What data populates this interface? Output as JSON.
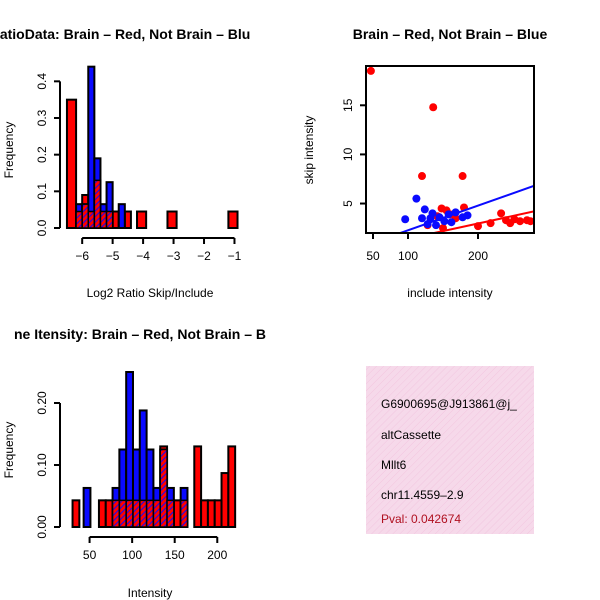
{
  "chart_data": [
    {
      "type": "histogram",
      "title": "RatioData: Brain – Red, Not Brain – Blu",
      "xlabel": "Log2 Ratio Skip/Include",
      "ylabel": "Frequency",
      "xlim": [
        -6.4,
        -0.95
      ],
      "ylim": [
        0,
        0.45
      ],
      "xticks": [
        -6,
        -5,
        -4,
        -3,
        -2,
        -1
      ],
      "xtick_labels": [
        "−6",
        "−5",
        "−4",
        "−3",
        "−2",
        "−1"
      ],
      "yticks": [
        0.0,
        0.1,
        0.2,
        0.3,
        0.4
      ],
      "ytick_labels": [
        "0.0",
        "0.1",
        "0.2",
        "0.3",
        "0.4"
      ],
      "series": [
        {
          "name": "Brain",
          "color": "#ff0000",
          "bins": [
            {
              "start": -6.5,
              "end": -6.2,
              "value": 0.35
            },
            {
              "start": -6.2,
              "end": -6.0,
              "value": 0.045
            },
            {
              "start": -6.0,
              "end": -5.8,
              "value": 0.09
            },
            {
              "start": -5.8,
              "end": -5.6,
              "value": 0.045
            },
            {
              "start": -5.6,
              "end": -5.4,
              "value": 0.13
            },
            {
              "start": -5.4,
              "end": -5.2,
              "value": 0.045
            },
            {
              "start": -5.2,
              "end": -5.0,
              "value": 0.045
            },
            {
              "start": -5.0,
              "end": -4.8,
              "value": 0.045
            },
            {
              "start": -4.6,
              "end": -4.4,
              "value": 0.045
            },
            {
              "start": -4.2,
              "end": -3.9,
              "value": 0.045
            },
            {
              "start": -3.2,
              "end": -2.9,
              "value": 0.045
            },
            {
              "start": -1.2,
              "end": -0.9,
              "value": 0.045
            }
          ]
        },
        {
          "name": "Not Brain",
          "color": "#0a0aff",
          "bins": [
            {
              "start": -6.2,
              "end": -6.0,
              "value": 0.065
            },
            {
              "start": -6.0,
              "end": -5.8,
              "value": 0.065
            },
            {
              "start": -5.8,
              "end": -5.6,
              "value": 0.44
            },
            {
              "start": -5.6,
              "end": -5.4,
              "value": 0.19
            },
            {
              "start": -5.4,
              "end": -5.2,
              "value": 0.065
            },
            {
              "start": -5.2,
              "end": -5.0,
              "value": 0.125
            },
            {
              "start": -4.8,
              "end": -4.6,
              "value": 0.065
            }
          ]
        }
      ]
    },
    {
      "type": "scatter",
      "title": "Brain – Red, Not Brain – Blue",
      "xlabel": "include intensity",
      "ylabel": "skip intensity",
      "xlim": [
        40,
        280
      ],
      "ylim": [
        2,
        19
      ],
      "xticks": [
        50,
        100,
        200
      ],
      "yticks": [
        5,
        10,
        15
      ],
      "series": [
        {
          "name": "Brain",
          "color": "#ff0000",
          "points": [
            [
              47,
              18.5
            ],
            [
              120,
              7.8
            ],
            [
              136,
              14.8
            ],
            [
              178,
              7.8
            ],
            [
              128,
              2.8
            ],
            [
              142,
              3.7
            ],
            [
              148,
              4.5
            ],
            [
              155,
              4.3
            ],
            [
              160,
              3.9
            ],
            [
              168,
              3.5
            ],
            [
              180,
              4.6
            ],
            [
              200,
              2.7
            ],
            [
              218,
              3.0
            ],
            [
              233,
              4.0
            ],
            [
              240,
              3.3
            ],
            [
              246,
              3.0
            ],
            [
              252,
              3.4
            ],
            [
              260,
              3.2
            ],
            [
              270,
              3.3
            ],
            [
              275,
              3.2
            ],
            [
              150,
              2.5
            ]
          ],
          "fit": [
            [
              40,
              0.5
            ],
            [
              280,
              4.2
            ]
          ]
        },
        {
          "name": "Not Brain",
          "color": "#0a0aff",
          "points": [
            [
              96,
              3.4
            ],
            [
              112,
              5.5
            ],
            [
              120,
              3.5
            ],
            [
              124,
              4.4
            ],
            [
              128,
              2.9
            ],
            [
              132,
              3.5
            ],
            [
              135,
              4.0
            ],
            [
              140,
              2.8
            ],
            [
              145,
              3.6
            ],
            [
              152,
              3.2
            ],
            [
              158,
              3.9
            ],
            [
              162,
              3.1
            ],
            [
              168,
              4.1
            ],
            [
              178,
              3.6
            ],
            [
              185,
              3.8
            ]
          ],
          "fit": [
            [
              85,
              1.9
            ],
            [
              280,
              6.8
            ]
          ]
        }
      ]
    },
    {
      "type": "histogram",
      "title": "ne Itensity: Brain – Red, Not Brain – B",
      "xlabel": "Intensity",
      "ylabel": "Frequency",
      "xlim": [
        27,
        222
      ],
      "ylim": [
        0,
        0.25
      ],
      "xticks": [
        50,
        100,
        150,
        200
      ],
      "yticks": [
        0.0,
        0.1,
        0.2
      ],
      "ytick_labels": [
        "0.00",
        "0.10",
        "0.20"
      ],
      "series": [
        {
          "name": "Brain",
          "color": "#ff0000",
          "bins": [
            {
              "start": 30,
              "end": 38,
              "value": 0.043
            },
            {
              "start": 61,
              "end": 69,
              "value": 0.043
            },
            {
              "start": 69,
              "end": 77,
              "value": 0.043
            },
            {
              "start": 77,
              "end": 85,
              "value": 0.043
            },
            {
              "start": 85,
              "end": 93,
              "value": 0.043
            },
            {
              "start": 93,
              "end": 101,
              "value": 0.043
            },
            {
              "start": 101,
              "end": 109,
              "value": 0.043
            },
            {
              "start": 109,
              "end": 117,
              "value": 0.043
            },
            {
              "start": 117,
              "end": 125,
              "value": 0.043
            },
            {
              "start": 125,
              "end": 133,
              "value": 0.043
            },
            {
              "start": 133,
              "end": 141,
              "value": 0.13
            },
            {
              "start": 141,
              "end": 149,
              "value": 0.043
            },
            {
              "start": 149,
              "end": 157,
              "value": 0.043
            },
            {
              "start": 157,
              "end": 165,
              "value": 0.043
            },
            {
              "start": 173,
              "end": 181,
              "value": 0.13
            },
            {
              "start": 181,
              "end": 189,
              "value": 0.043
            },
            {
              "start": 189,
              "end": 197,
              "value": 0.043
            },
            {
              "start": 197,
              "end": 205,
              "value": 0.043
            },
            {
              "start": 205,
              "end": 213,
              "value": 0.087
            },
            {
              "start": 213,
              "end": 221,
              "value": 0.13
            }
          ]
        },
        {
          "name": "Not Brain",
          "color": "#0a0aff",
          "bins": [
            {
              "start": 43,
              "end": 51,
              "value": 0.063
            },
            {
              "start": 77,
              "end": 85,
              "value": 0.063
            },
            {
              "start": 85,
              "end": 93,
              "value": 0.125
            },
            {
              "start": 93,
              "end": 101,
              "value": 0.25
            },
            {
              "start": 101,
              "end": 109,
              "value": 0.125
            },
            {
              "start": 109,
              "end": 117,
              "value": 0.188
            },
            {
              "start": 117,
              "end": 125,
              "value": 0.125
            },
            {
              "start": 125,
              "end": 133,
              "value": 0.063
            },
            {
              "start": 133,
              "end": 141,
              "value": 0.125
            },
            {
              "start": 141,
              "end": 149,
              "value": 0.063
            },
            {
              "start": 157,
              "end": 165,
              "value": 0.063
            }
          ]
        }
      ]
    }
  ],
  "info_box": {
    "id": "G6900695@J913861@j_",
    "event_type": "altCassette",
    "gene": "Mllt6",
    "location": "chr11.4559–2.9",
    "pval": "Pval: 0.042674",
    "background": "#f6d9ea",
    "pval_color": "#b01020"
  }
}
